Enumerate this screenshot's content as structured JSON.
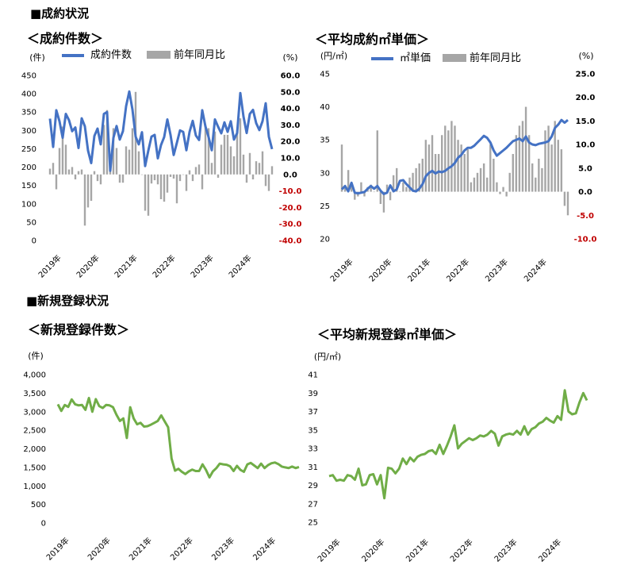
{
  "sections": {
    "contracts": "■成約状況",
    "registrations": "■新規登録状況"
  },
  "chart_data": [
    {
      "id": "contract-count",
      "type": "bar+line",
      "title": "＜成約件数＞",
      "left_unit": "(件)",
      "right_unit": "(%)",
      "legend": [
        "成約件数",
        "前年同月比"
      ],
      "legend_placement": "top",
      "x_tick_labels": [
        "2019年",
        "2020年",
        "2021年",
        "2022年",
        "2023年",
        "2024年"
      ],
      "y_left_ticks": [
        "0",
        "50",
        "100",
        "150",
        "200",
        "250",
        "300",
        "350",
        "400",
        "450"
      ],
      "y_right_ticks": [
        "-40.0",
        "-30.0",
        "-20.0",
        "-10.0",
        "0.0",
        "10.0",
        "20.0",
        "30.0",
        "40.0",
        "50.0",
        "60.0"
      ],
      "ylim_left": [
        0,
        450
      ],
      "ylim_right": [
        -40,
        60
      ],
      "colors": {
        "line": "#4472C4",
        "bars": "#A6A6A6",
        "negative_ticks": "#C00000"
      },
      "grid": false,
      "series": [
        {
          "name": "成約件数",
          "kind": "line",
          "axis": "left",
          "values": [
            332,
            255,
            355,
            325,
            280,
            345,
            328,
            298,
            308,
            252,
            333,
            311,
            245,
            211,
            285,
            305,
            262,
            345,
            350,
            190,
            280,
            312,
            275,
            298,
            366,
            406,
            357,
            283,
            262,
            295,
            203,
            245,
            283,
            288,
            224,
            260,
            282,
            330,
            288,
            233,
            266,
            300,
            296,
            246,
            296,
            326,
            286,
            274,
            355,
            311,
            282,
            246,
            330,
            310,
            292,
            322,
            296,
            325,
            275,
            293,
            402,
            338,
            293,
            345,
            356,
            320,
            301,
            325,
            374,
            283,
            249
          ]
        },
        {
          "name": "前年同月比",
          "kind": "bar",
          "axis": "right",
          "values": [
            3.5,
            7,
            -9,
            16,
            29,
            18,
            3,
            4.5,
            -3,
            2,
            3,
            -31,
            -20,
            -16,
            2,
            -4,
            -6,
            30,
            39,
            12,
            28,
            16,
            -5,
            -5,
            17,
            15,
            28,
            50,
            14,
            0,
            -22,
            -25,
            -5.5,
            -3.5,
            -6,
            -15,
            -16.5,
            -11,
            -1.5,
            -2.5,
            -17.5,
            -4,
            0,
            -10,
            2.5,
            -4,
            4.5,
            6,
            -9,
            30,
            28,
            7,
            26,
            -2,
            18,
            24,
            24,
            17,
            11,
            27,
            34,
            12,
            -5,
            13,
            -3,
            8,
            7,
            14,
            -7,
            -10,
            5
          ]
        }
      ]
    },
    {
      "id": "contract-unit-price",
      "type": "bar+line",
      "title": "＜平均成約㎡単価＞",
      "left_unit": "(円/㎡)",
      "right_unit": "(%)",
      "legend": [
        "㎡単価",
        "前年同月比"
      ],
      "legend_placement": "top",
      "x_tick_labels": [
        "2019年",
        "2020年",
        "2021年",
        "2022年",
        "2023年",
        "2024年"
      ],
      "y_left_ticks": [
        "20",
        "25",
        "30",
        "35",
        "40",
        "45"
      ],
      "y_right_ticks": [
        "-10.0",
        "-5.0",
        "0.0",
        "5.0",
        "10.0",
        "15.0",
        "20.0",
        "25.0"
      ],
      "ylim_left": [
        20,
        45
      ],
      "ylim_right": [
        -10,
        25
      ],
      "colors": {
        "line": "#4472C4",
        "bars": "#A6A6A6",
        "negative_ticks": "#C00000"
      },
      "grid": false,
      "series": [
        {
          "name": "㎡単価",
          "kind": "line",
          "axis": "left",
          "values": [
            27.5,
            28.0,
            27.2,
            28.5,
            27.0,
            26.9,
            27.0,
            27.1,
            27.6,
            28.0,
            27.6,
            28.0,
            27.3,
            26.8,
            27.0,
            28.1,
            27.2,
            27.5,
            28.8,
            28.9,
            28.3,
            27.8,
            27.3,
            27.2,
            27.6,
            28.3,
            29.5,
            30.0,
            30.3,
            29.9,
            30.2,
            30.1,
            30.3,
            30.7,
            31.0,
            31.5,
            32.3,
            32.7,
            33.4,
            33.8,
            33.8,
            34.1,
            34.6,
            35.1,
            35.6,
            35.3,
            34.6,
            33.4,
            32.6,
            33.0,
            33.4,
            33.8,
            34.3,
            34.8,
            35.0,
            35.2,
            34.8,
            35.5,
            34.6,
            34.3,
            34.2,
            34.4,
            34.5,
            34.6,
            34.8,
            35.5,
            36.8,
            37.3,
            38.0,
            37.6,
            38.0
          ]
        },
        {
          "name": "前年同月比",
          "kind": "bar",
          "axis": "right",
          "values": [
            10,
            1,
            4.6,
            1.3,
            -1.7,
            -1,
            2,
            -1,
            1,
            1.5,
            0,
            13,
            -2.6,
            -4.4,
            1.5,
            -1.8,
            3.5,
            5,
            0,
            2,
            1,
            3,
            4,
            5,
            6,
            7,
            11,
            10,
            12,
            8,
            8,
            12,
            14,
            13,
            15,
            14,
            11,
            10,
            8,
            9,
            2,
            3,
            4,
            5,
            6,
            3,
            10,
            7,
            2,
            -0.5,
            1,
            -1,
            4,
            8,
            12,
            14,
            15,
            18,
            12,
            6,
            3,
            7,
            5,
            13,
            14,
            10,
            15,
            11,
            9,
            -3,
            -5
          ]
        }
      ]
    },
    {
      "id": "registration-count",
      "type": "line",
      "title": "＜新規登録件数＞",
      "left_unit": "(件)",
      "x_tick_labels": [
        "2019年",
        "2020年",
        "2021年",
        "2022年",
        "2023年",
        "2024年"
      ],
      "y_left_ticks": [
        "0",
        "500",
        "1,000",
        "1,500",
        "2,000",
        "2,500",
        "3,000",
        "3,500",
        "4,000"
      ],
      "ylim_left": [
        0,
        4000
      ],
      "colors": {
        "line": "#70AD47"
      },
      "grid": false,
      "series": [
        {
          "name": "",
          "kind": "line",
          "values": [
            3200,
            3020,
            3180,
            3130,
            3330,
            3200,
            3170,
            3180,
            3050,
            3370,
            3000,
            3340,
            3150,
            3100,
            3180,
            3170,
            3120,
            2920,
            2750,
            2820,
            2290,
            3120,
            2820,
            2660,
            2700,
            2600,
            2610,
            2650,
            2700,
            2750,
            2900,
            2740,
            2580,
            1740,
            1410,
            1460,
            1380,
            1320,
            1390,
            1440,
            1400,
            1400,
            1580,
            1430,
            1230,
            1390,
            1480,
            1600,
            1580,
            1570,
            1530,
            1400,
            1540,
            1430,
            1380,
            1580,
            1620,
            1550,
            1480,
            1600,
            1480,
            1560,
            1610,
            1630,
            1590,
            1520,
            1500,
            1480,
            1520,
            1480,
            1510
          ]
        }
      ]
    },
    {
      "id": "registration-unit-price",
      "type": "line",
      "title": "＜平均新規登録㎡単価＞",
      "left_unit": "(円/㎡)",
      "x_tick_labels": [
        "2019年",
        "2020年",
        "2021年",
        "2022年",
        "2023年",
        "2024年"
      ],
      "y_left_ticks": [
        "25",
        "27",
        "29",
        "31",
        "33",
        "35",
        "37",
        "39",
        "41"
      ],
      "ylim_left": [
        25,
        41
      ],
      "colors": {
        "line": "#70AD47"
      },
      "grid": false,
      "series": [
        {
          "name": "",
          "kind": "line",
          "values": [
            30.0,
            30.1,
            29.5,
            29.6,
            29.5,
            30.1,
            30.0,
            29.6,
            30.8,
            29.0,
            29.1,
            30.1,
            30.2,
            29.1,
            30.1,
            27.6,
            30.9,
            30.8,
            30.3,
            30.8,
            31.9,
            31.3,
            32.0,
            31.6,
            32.1,
            32.3,
            32.4,
            32.7,
            32.8,
            32.4,
            33.4,
            32.4,
            33.3,
            34.3,
            35.5,
            33.0,
            33.5,
            33.8,
            34.1,
            33.9,
            34.1,
            34.4,
            34.3,
            34.5,
            34.9,
            34.6,
            33.3,
            34.3,
            34.5,
            34.6,
            34.5,
            34.9,
            34.5,
            35.4,
            34.5,
            35.1,
            35.3,
            35.7,
            35.9,
            36.3,
            36.0,
            35.8,
            36.5,
            36.1,
            39.3,
            37.0,
            36.7,
            36.8,
            38.0,
            39.0,
            38.2
          ]
        }
      ]
    }
  ]
}
